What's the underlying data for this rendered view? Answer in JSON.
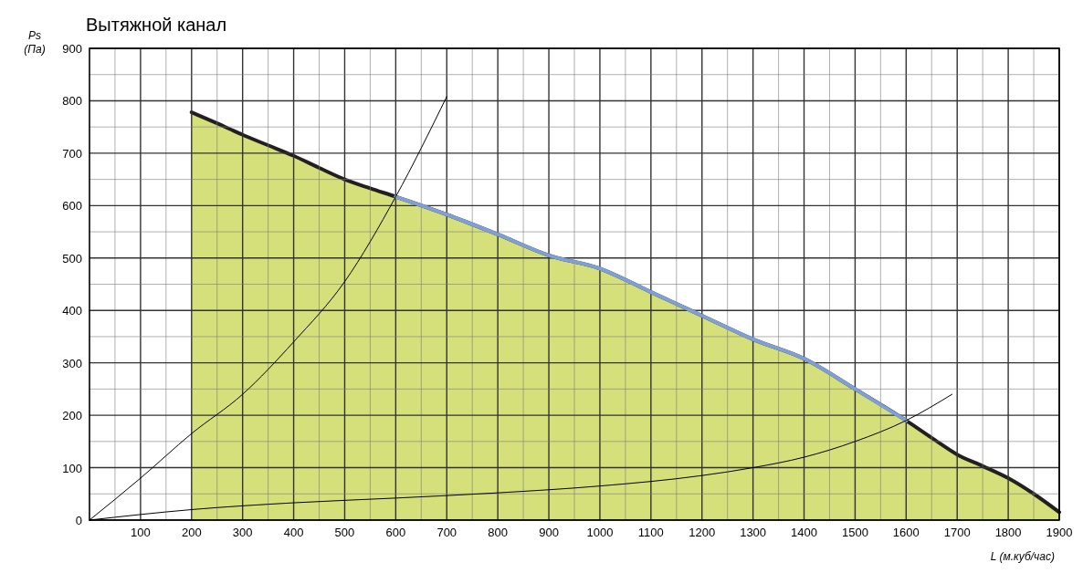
{
  "chart_data": {
    "type": "line",
    "title": "Вытяжной канал",
    "xlabel": "L (м.куб/час)",
    "ylabel": "Ps (Па)",
    "xlim": [
      0,
      1900
    ],
    "ylim": [
      0,
      900
    ],
    "xticks": [
      {
        "value": 50,
        "label": null
      },
      100,
      {
        "value": 150,
        "label": null
      },
      200,
      {
        "value": 250,
        "label": null
      },
      300,
      {
        "value": 350,
        "label": null
      },
      400,
      {
        "value": 450,
        "label": null
      },
      500,
      {
        "value": 550,
        "label": null
      },
      600,
      {
        "value": 650,
        "label": null
      },
      700,
      {
        "value": 750,
        "label": null
      },
      800,
      {
        "value": 850,
        "label": null
      },
      900,
      {
        "value": 950,
        "label": null
      },
      1000,
      {
        "value": 1050,
        "label": null
      },
      1100,
      {
        "value": 1150,
        "label": null
      },
      1200,
      {
        "value": 1250,
        "label": null
      },
      1300,
      {
        "value": 1350,
        "label": null
      },
      1400,
      {
        "value": 1450,
        "label": null
      },
      1500,
      {
        "value": 1550,
        "label": null
      },
      1600,
      {
        "value": 1650,
        "label": null
      },
      1700,
      {
        "value": 1750,
        "label": null
      },
      1800,
      {
        "value": 1850,
        "label": null
      },
      1900
    ],
    "yticks": [
      0,
      {
        "value": 50,
        "label": null
      },
      100,
      {
        "value": 150,
        "label": null
      },
      200,
      {
        "value": 250,
        "label": null
      },
      300,
      {
        "value": 350,
        "label": null
      },
      400,
      {
        "value": 450,
        "label": null
      },
      500,
      {
        "value": 550,
        "label": null
      },
      600,
      {
        "value": 650,
        "label": null
      },
      700,
      {
        "value": 750,
        "label": null
      },
      800,
      {
        "value": 850,
        "label": null
      },
      900
    ],
    "grid": true,
    "legend": false,
    "marker": "none",
    "series": [
      {
        "type": "area",
        "color": "#d5e07a",
        "x": [
          200,
          250,
          300,
          350,
          400,
          450,
          500,
          550,
          600,
          700,
          800,
          900,
          1000,
          1100,
          1200,
          1300,
          1400,
          1500,
          1600,
          1650,
          1700,
          1750,
          1800,
          1850,
          1900
        ],
        "values": [
          778,
          757,
          735,
          715,
          695,
          672,
          650,
          633,
          617,
          583,
          545,
          505,
          480,
          435,
          390,
          345,
          308,
          250,
          190,
          157,
          125,
          103,
          80,
          50,
          15
        ]
      },
      {
        "type": "line",
        "color": "#7f9fd6",
        "x": [
          600,
          700,
          800,
          900,
          1000,
          1100,
          1200,
          1300,
          1400,
          1500,
          1600
        ],
        "values": [
          617,
          583,
          545,
          505,
          480,
          435,
          390,
          345,
          308,
          250,
          190
        ]
      },
      {
        "type": "line",
        "color": "#000000",
        "x": [
          0,
          100,
          200,
          300,
          400,
          500,
          600,
          700
        ],
        "values": [
          0,
          80,
          165,
          240,
          340,
          455,
          617,
          808
        ]
      },
      {
        "type": "line",
        "color": "#000000",
        "x": [
          0,
          200,
          400,
          600,
          800,
          1000,
          1200,
          1300,
          1400,
          1500,
          1600,
          1690
        ],
        "values": [
          0,
          20,
          33,
          42,
          52,
          65,
          85,
          100,
          120,
          150,
          190,
          240
        ]
      }
    ]
  }
}
